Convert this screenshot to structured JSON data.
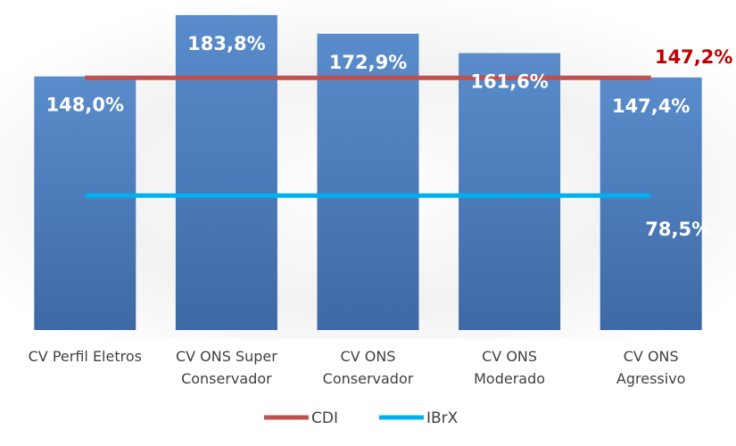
{
  "chart_data": {
    "type": "bar",
    "categories": [
      [
        "CV Perfil Eletros"
      ],
      [
        "CV ONS Super",
        "Conservador"
      ],
      [
        "CV ONS",
        "Conservador"
      ],
      [
        "CV ONS",
        "Moderado"
      ],
      [
        "CV ONS",
        "Agressivo"
      ]
    ],
    "values": [
      148.0,
      183.8,
      172.9,
      161.6,
      147.4
    ],
    "value_labels": [
      "148,0%",
      "183,8%",
      "172,9%",
      "161,6%",
      "147,4%"
    ],
    "color": "#4f81bd",
    "series": [
      {
        "name": "CDI",
        "type": "line",
        "color": "#c0504d",
        "values": [
          147.2,
          147.2,
          147.2,
          147.2,
          147.2
        ],
        "value_labels": [
          null,
          null,
          null,
          null,
          "147,2%"
        ],
        "label_color": "#c00000"
      },
      {
        "name": "IBrX",
        "type": "line",
        "color": "#00b0f0",
        "values": [
          78.5,
          78.5,
          78.5,
          78.5,
          78.5
        ],
        "value_labels": [
          null,
          null,
          null,
          null,
          "78,5%"
        ],
        "label_color": "#ffffff"
      }
    ],
    "ylim": [
      0,
      190
    ],
    "legend": "bottom"
  }
}
